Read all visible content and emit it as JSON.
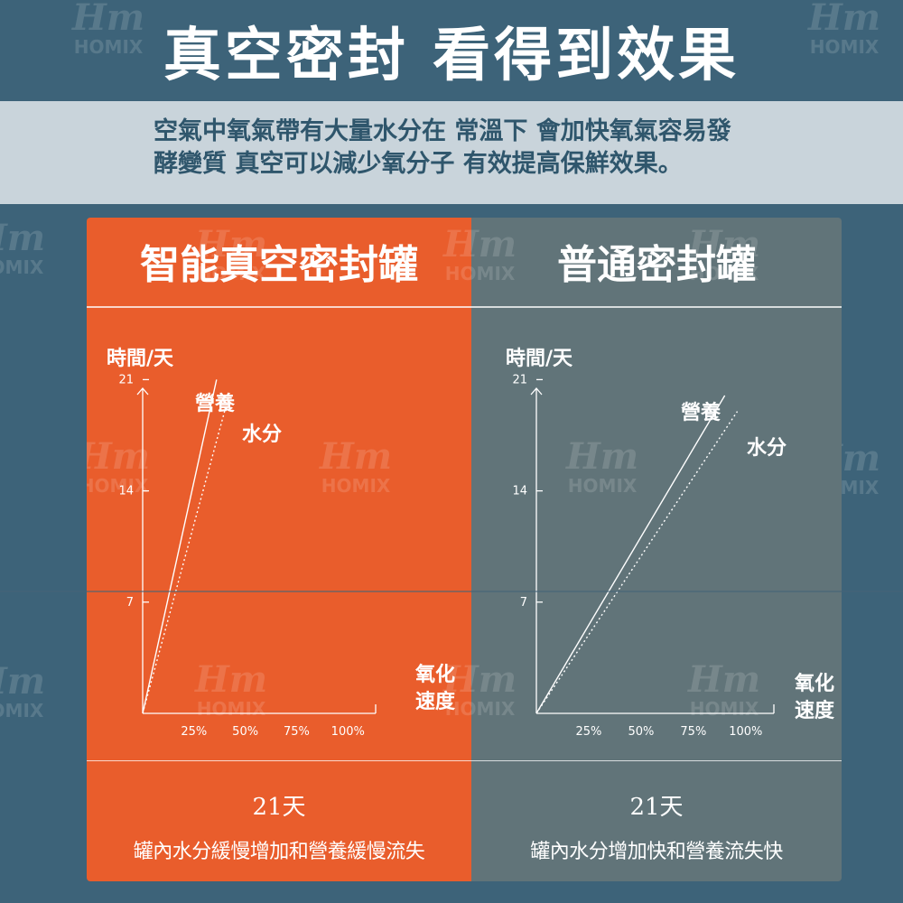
{
  "header": {
    "title": "真空密封 看得到效果",
    "intro_line1": "空氣中氧氣帶有大量水分在 常溫下 會加快氧氣容易發",
    "intro_line2": "酵變質 真空可以減少氧分子 有效提高保鮮效果。"
  },
  "watermark": {
    "mark": "Hm",
    "brand": "HOMIX"
  },
  "panels": [
    {
      "title": "智能真空密封罐",
      "y_axis_title": "時間/天",
      "x_axis_title": "氧化速度",
      "series_labels": [
        "營養",
        "水分"
      ],
      "days": "21天",
      "summary": "罐內水分緩慢增加和營養緩慢流失",
      "color": "#e95d2c"
    },
    {
      "title": "普通密封罐",
      "y_axis_title": "時間/天",
      "x_axis_title": "氧化速度",
      "series_labels": [
        "營養",
        "水分"
      ],
      "days": "21天",
      "summary": "罐內水分增加快和營養流失快",
      "color": "#617479"
    }
  ],
  "chart_data": [
    {
      "type": "line",
      "xlabel": "氧化速度",
      "ylabel": "時間/天",
      "x_ticks": [
        "25%",
        "50%",
        "75%",
        "100%"
      ],
      "y_ticks": [
        "7",
        "14",
        "21"
      ],
      "xlim": [
        0,
        110
      ],
      "ylim": [
        0,
        25
      ],
      "series": [
        {
          "name": "營養",
          "style": "solid",
          "x": [
            0,
            36
          ],
          "y": [
            0,
            21
          ]
        },
        {
          "name": "水分",
          "style": "dotted",
          "x": [
            0,
            42
          ],
          "y": [
            0,
            20
          ]
        }
      ]
    },
    {
      "type": "line",
      "xlabel": "氧化速度",
      "ylabel": "時間/天",
      "x_ticks": [
        "25%",
        "50%",
        "75%",
        "100%"
      ],
      "y_ticks": [
        "7",
        "14",
        "21"
      ],
      "xlim": [
        0,
        110
      ],
      "ylim": [
        0,
        25
      ],
      "series": [
        {
          "name": "營養",
          "style": "solid",
          "x": [
            0,
            90
          ],
          "y": [
            0,
            20
          ]
        },
        {
          "name": "水分",
          "style": "dotted",
          "x": [
            0,
            96
          ],
          "y": [
            0,
            19
          ]
        }
      ]
    }
  ]
}
